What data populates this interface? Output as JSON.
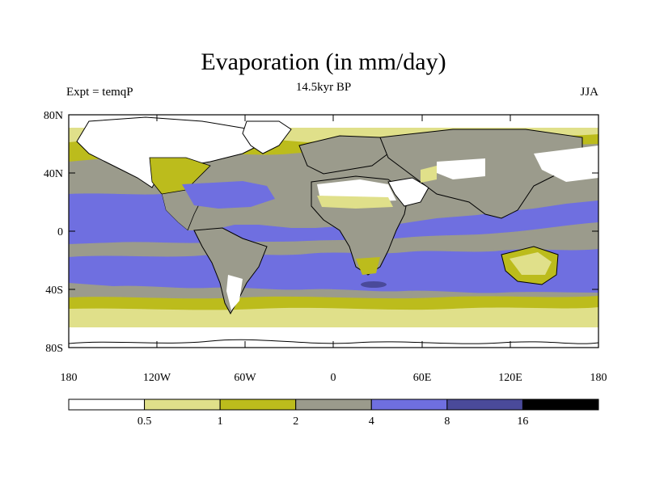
{
  "title": "Evaporation (in mm/day)",
  "subtitle": "14.5kyr BP",
  "left_label": "Expt = temqP",
  "right_label": "JJA",
  "lat_ticks": [
    "80N",
    "40N",
    "0",
    "40S",
    "80S"
  ],
  "lon_ticks": [
    "180",
    "120W",
    "60W",
    "0",
    "60E",
    "120E",
    "180"
  ],
  "colorbar": {
    "labels": [
      "0.5",
      "1",
      "2",
      "4",
      "8",
      "16"
    ],
    "colors": [
      "#ffffff",
      "#e0e08a",
      "#bcbc1c",
      "#9b9b8c",
      "#6f6fe0",
      "#4a4a9a",
      "#000000"
    ]
  },
  "colors": {
    "white": "#ffffff",
    "pale_yellow": "#e0e08a",
    "olive": "#bcbc1c",
    "gray": "#9b9b8c",
    "blue": "#6f6fe0",
    "dark_blue": "#4a4a9a",
    "black": "#000000"
  }
}
